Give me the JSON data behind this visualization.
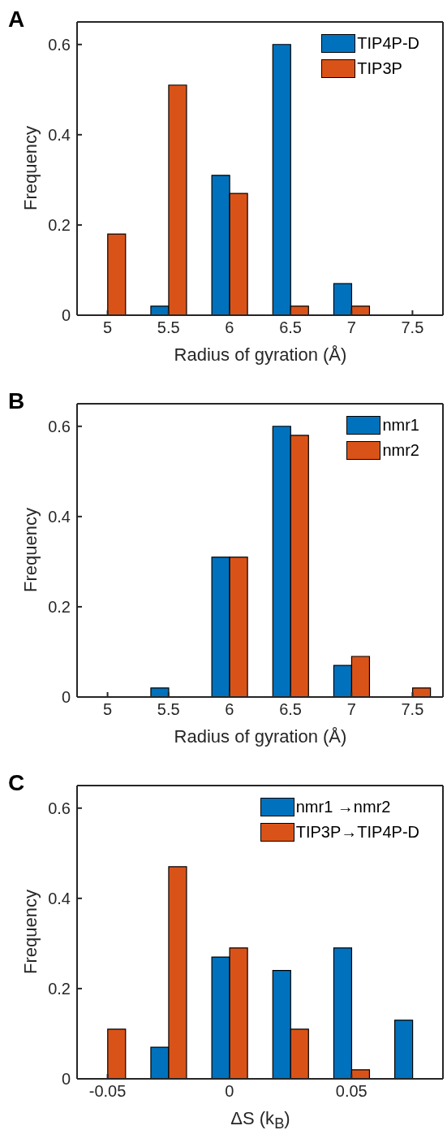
{
  "chart_data": [
    {
      "type": "bar",
      "title": "A",
      "xlabel": "Radius of gyration (Å)",
      "ylabel": "Frequency",
      "x": [
        5,
        5.5,
        6,
        6.5,
        7,
        7.5
      ],
      "xlim": [
        4.75,
        7.75
      ],
      "xticks": [
        5,
        5.5,
        6,
        6.5,
        7,
        7.5
      ],
      "ylim": [
        0,
        0.65
      ],
      "yticks": [
        0,
        0.2,
        0.4,
        0.6
      ],
      "legend": "top right",
      "series": [
        {
          "name": "TIP4P-D",
          "color": "#0072bd",
          "values": [
            0,
            0.02,
            0.31,
            0.6,
            0.07,
            0
          ]
        },
        {
          "name": "TIP3P",
          "color": "#d95319",
          "values": [
            0.18,
            0.51,
            0.27,
            0.02,
            0.02,
            0
          ]
        }
      ]
    },
    {
      "type": "bar",
      "title": "B",
      "xlabel": "Radius of gyration (Å)",
      "ylabel": "Frequency",
      "x": [
        5,
        5.5,
        6,
        6.5,
        7,
        7.5
      ],
      "xlim": [
        4.75,
        7.75
      ],
      "xticks": [
        5,
        5.5,
        6,
        6.5,
        7,
        7.5
      ],
      "ylim": [
        0,
        0.65
      ],
      "yticks": [
        0,
        0.2,
        0.4,
        0.6
      ],
      "legend": "top right",
      "series": [
        {
          "name": "nmr1",
          "color": "#0072bd",
          "values": [
            0,
            0.02,
            0.31,
            0.6,
            0.07,
            0
          ]
        },
        {
          "name": "nmr2",
          "color": "#d95319",
          "values": [
            0,
            0,
            0.31,
            0.58,
            0.09,
            0.02
          ]
        }
      ]
    },
    {
      "type": "bar",
      "title": "C",
      "xlabel": "ΔS (k$_{B}$)",
      "ylabel": "Frequency",
      "x": [
        -0.05,
        -0.025,
        0,
        0.025,
        0.05,
        0.075
      ],
      "xlim": [
        -0.0625,
        0.0875
      ],
      "xticks": [
        -0.05,
        0,
        0.05
      ],
      "ylim": [
        0,
        0.65
      ],
      "yticks": [
        0,
        0.2,
        0.4,
        0.6
      ],
      "legend": "top right",
      "series": [
        {
          "name": "nmr1 →nmr2",
          "color": "#0072bd",
          "values": [
            0,
            0.07,
            0.27,
            0.24,
            0.29,
            0.13
          ]
        },
        {
          "name": "TIP3P→TIP4P-D",
          "color": "#d95319",
          "values": [
            0.11,
            0.47,
            0.29,
            0.11,
            0.02,
            0
          ]
        }
      ]
    }
  ]
}
